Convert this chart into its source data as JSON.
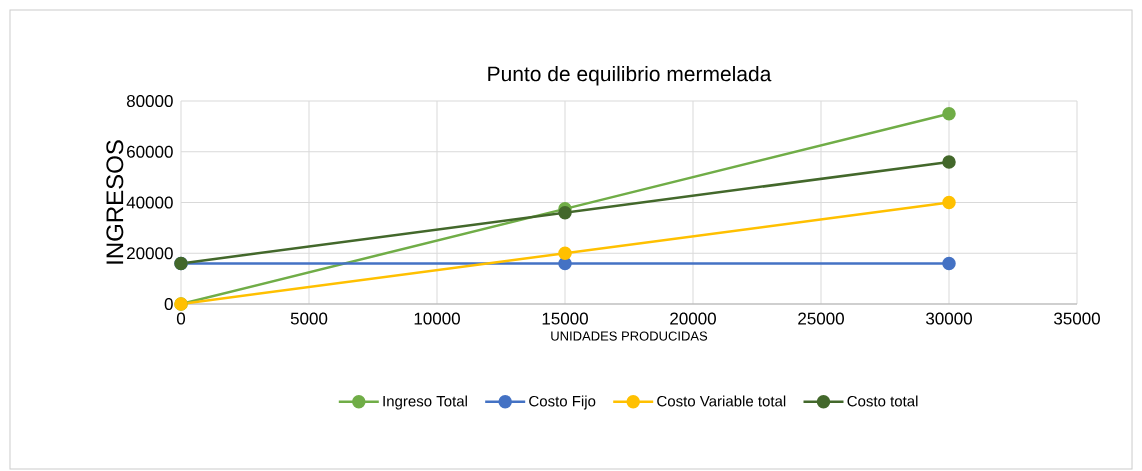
{
  "chart_data": {
    "type": "line",
    "title": "Punto de equilibrio mermelada",
    "xlabel": "UNIDADES PRODUCIDAS",
    "ylabel": "INGRESOS",
    "x": [
      0,
      15000,
      30000
    ],
    "series": [
      {
        "name": "Ingreso Total",
        "color": "#70ad47",
        "values": [
          0,
          37500,
          75000
        ]
      },
      {
        "name": "Costo Fijo",
        "color": "#4472c4",
        "values": [
          16000,
          16000,
          16000
        ]
      },
      {
        "name": "Costo Variable total",
        "color": "#ffc000",
        "values": [
          0,
          20000,
          40000
        ]
      },
      {
        "name": "Costo total",
        "color": "#43682b",
        "values": [
          16000,
          36000,
          56000
        ]
      }
    ],
    "xlim": [
      0,
      35000
    ],
    "xticks": [
      0,
      5000,
      10000,
      15000,
      20000,
      25000,
      30000,
      35000
    ],
    "ylim": [
      0,
      80000
    ],
    "yticks": [
      0,
      20000,
      40000,
      60000,
      80000
    ],
    "grid": true,
    "legend": "bottom",
    "marker": "circle",
    "line_style": "solid"
  }
}
